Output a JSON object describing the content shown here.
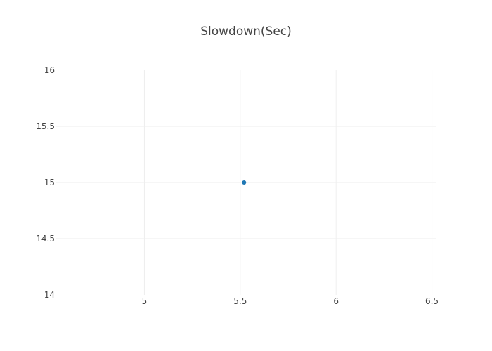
{
  "chart_data": {
    "type": "scatter",
    "title": "Slowdown(Sec)",
    "xlabel": "",
    "ylabel": "",
    "xlim": [
      4.54,
      6.52
    ],
    "ylim": [
      14,
      16
    ],
    "x_ticks": [
      5,
      5.5,
      6,
      6.5
    ],
    "x_tick_labels": [
      "5",
      "5.5",
      "6",
      "6.5"
    ],
    "y_ticks": [
      14,
      14.5,
      15,
      15.5,
      16
    ],
    "y_tick_labels": [
      "14",
      "14.5",
      "15",
      "15.5",
      "16"
    ],
    "grid": true,
    "legend": "none",
    "series": [
      {
        "color": "#1f77b4",
        "points": [
          {
            "x": 5.52,
            "y": 15
          }
        ]
      }
    ]
  }
}
